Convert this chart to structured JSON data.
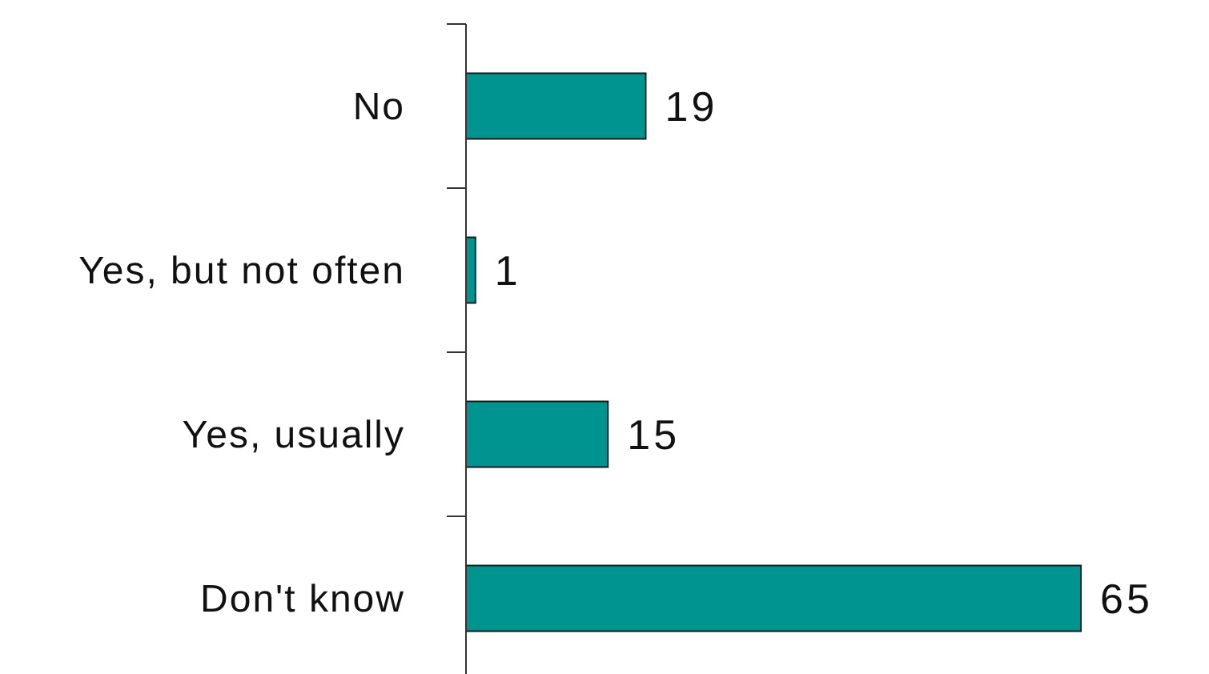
{
  "chart_data": {
    "type": "bar",
    "orientation": "horizontal",
    "categories": [
      "No",
      "Yes, but not often",
      "Yes, usually",
      "Don't know"
    ],
    "values": [
      19,
      1,
      15,
      65
    ],
    "color": "#009490",
    "data_labels": true
  }
}
